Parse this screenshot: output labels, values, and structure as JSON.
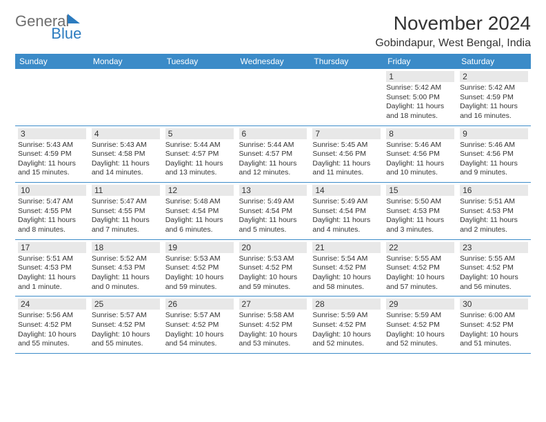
{
  "logo": {
    "part1": "General",
    "part2": "Blue"
  },
  "title": "November 2024",
  "location": "Gobindapur, West Bengal, India",
  "colors": {
    "header_bg": "#3b8bc8",
    "header_text": "#ffffff",
    "daynum_bg": "#e8e8e8",
    "row_border": "#3b8bc8",
    "text": "#333333",
    "logo_gray": "#6e6e6e",
    "logo_blue": "#2b7bbf"
  },
  "day_names": [
    "Sunday",
    "Monday",
    "Tuesday",
    "Wednesday",
    "Thursday",
    "Friday",
    "Saturday"
  ],
  "weeks": [
    [
      null,
      null,
      null,
      null,
      null,
      {
        "n": "1",
        "sr": "5:42 AM",
        "ss": "5:00 PM",
        "dl": "11 hours and 18 minutes."
      },
      {
        "n": "2",
        "sr": "5:42 AM",
        "ss": "4:59 PM",
        "dl": "11 hours and 16 minutes."
      }
    ],
    [
      {
        "n": "3",
        "sr": "5:43 AM",
        "ss": "4:59 PM",
        "dl": "11 hours and 15 minutes."
      },
      {
        "n": "4",
        "sr": "5:43 AM",
        "ss": "4:58 PM",
        "dl": "11 hours and 14 minutes."
      },
      {
        "n": "5",
        "sr": "5:44 AM",
        "ss": "4:57 PM",
        "dl": "11 hours and 13 minutes."
      },
      {
        "n": "6",
        "sr": "5:44 AM",
        "ss": "4:57 PM",
        "dl": "11 hours and 12 minutes."
      },
      {
        "n": "7",
        "sr": "5:45 AM",
        "ss": "4:56 PM",
        "dl": "11 hours and 11 minutes."
      },
      {
        "n": "8",
        "sr": "5:46 AM",
        "ss": "4:56 PM",
        "dl": "11 hours and 10 minutes."
      },
      {
        "n": "9",
        "sr": "5:46 AM",
        "ss": "4:56 PM",
        "dl": "11 hours and 9 minutes."
      }
    ],
    [
      {
        "n": "10",
        "sr": "5:47 AM",
        "ss": "4:55 PM",
        "dl": "11 hours and 8 minutes."
      },
      {
        "n": "11",
        "sr": "5:47 AM",
        "ss": "4:55 PM",
        "dl": "11 hours and 7 minutes."
      },
      {
        "n": "12",
        "sr": "5:48 AM",
        "ss": "4:54 PM",
        "dl": "11 hours and 6 minutes."
      },
      {
        "n": "13",
        "sr": "5:49 AM",
        "ss": "4:54 PM",
        "dl": "11 hours and 5 minutes."
      },
      {
        "n": "14",
        "sr": "5:49 AM",
        "ss": "4:54 PM",
        "dl": "11 hours and 4 minutes."
      },
      {
        "n": "15",
        "sr": "5:50 AM",
        "ss": "4:53 PM",
        "dl": "11 hours and 3 minutes."
      },
      {
        "n": "16",
        "sr": "5:51 AM",
        "ss": "4:53 PM",
        "dl": "11 hours and 2 minutes."
      }
    ],
    [
      {
        "n": "17",
        "sr": "5:51 AM",
        "ss": "4:53 PM",
        "dl": "11 hours and 1 minute."
      },
      {
        "n": "18",
        "sr": "5:52 AM",
        "ss": "4:53 PM",
        "dl": "11 hours and 0 minutes."
      },
      {
        "n": "19",
        "sr": "5:53 AM",
        "ss": "4:52 PM",
        "dl": "10 hours and 59 minutes."
      },
      {
        "n": "20",
        "sr": "5:53 AM",
        "ss": "4:52 PM",
        "dl": "10 hours and 59 minutes."
      },
      {
        "n": "21",
        "sr": "5:54 AM",
        "ss": "4:52 PM",
        "dl": "10 hours and 58 minutes."
      },
      {
        "n": "22",
        "sr": "5:55 AM",
        "ss": "4:52 PM",
        "dl": "10 hours and 57 minutes."
      },
      {
        "n": "23",
        "sr": "5:55 AM",
        "ss": "4:52 PM",
        "dl": "10 hours and 56 minutes."
      }
    ],
    [
      {
        "n": "24",
        "sr": "5:56 AM",
        "ss": "4:52 PM",
        "dl": "10 hours and 55 minutes."
      },
      {
        "n": "25",
        "sr": "5:57 AM",
        "ss": "4:52 PM",
        "dl": "10 hours and 55 minutes."
      },
      {
        "n": "26",
        "sr": "5:57 AM",
        "ss": "4:52 PM",
        "dl": "10 hours and 54 minutes."
      },
      {
        "n": "27",
        "sr": "5:58 AM",
        "ss": "4:52 PM",
        "dl": "10 hours and 53 minutes."
      },
      {
        "n": "28",
        "sr": "5:59 AM",
        "ss": "4:52 PM",
        "dl": "10 hours and 52 minutes."
      },
      {
        "n": "29",
        "sr": "5:59 AM",
        "ss": "4:52 PM",
        "dl": "10 hours and 52 minutes."
      },
      {
        "n": "30",
        "sr": "6:00 AM",
        "ss": "4:52 PM",
        "dl": "10 hours and 51 minutes."
      }
    ]
  ],
  "labels": {
    "sunrise": "Sunrise: ",
    "sunset": "Sunset: ",
    "daylight": "Daylight: "
  }
}
